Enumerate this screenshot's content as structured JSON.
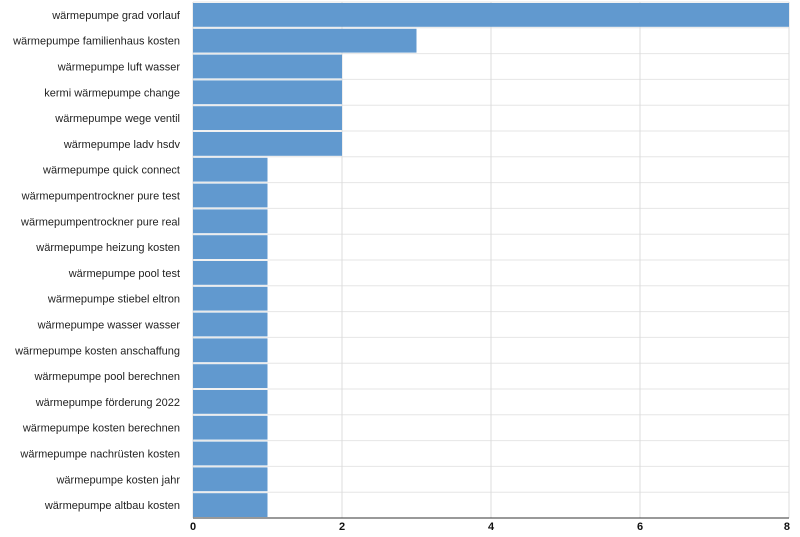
{
  "chart_data": {
    "type": "bar",
    "orientation": "horizontal",
    "categories": [
      "wärmepumpe grad vorlauf",
      "wärmepumpe familienhaus kosten",
      "wärmepumpe luft wasser",
      "kermi wärmepumpe change",
      "wärmepumpe wege ventil",
      "wärmepumpe ladv hsdv",
      "wärmepumpe quick connect",
      "wärmepumpentrockner pure test",
      "wärmepumpentrockner pure real",
      "wärmepumpe heizung kosten",
      "wärmepumpe pool test",
      "wärmepumpe stiebel eltron",
      "wärmepumpe wasser wasser",
      "wärmepumpe kosten anschaffung",
      "wärmepumpe pool berechnen",
      "wärmepumpe förderung 2022",
      "wärmepumpe kosten berechnen",
      "wärmepumpe nachrüsten kosten",
      "wärmepumpe kosten jahr",
      "wärmepumpe altbau kosten"
    ],
    "values": [
      8,
      3,
      2,
      2,
      2,
      2,
      1,
      1,
      1,
      1,
      1,
      1,
      1,
      1,
      1,
      1,
      1,
      1,
      1,
      1
    ],
    "xlim": [
      0,
      8
    ],
    "xticks": [
      "0",
      "2",
      "4",
      "6",
      "8"
    ],
    "grid": true,
    "bar_color": "#6199cf",
    "title": "",
    "xlabel": "",
    "ylabel": ""
  }
}
